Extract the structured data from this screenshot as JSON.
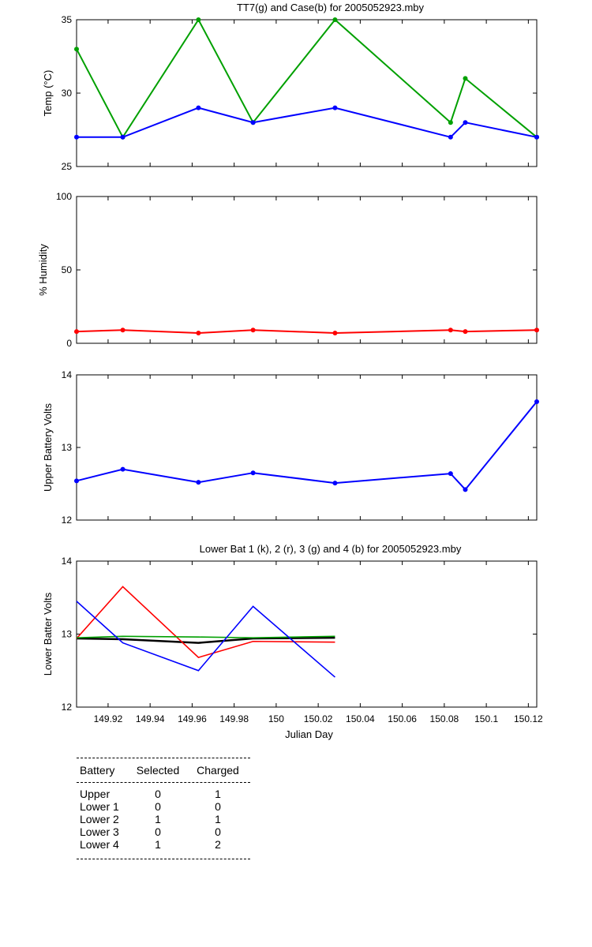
{
  "chart_data": [
    {
      "type": "line",
      "title": "TT7(g) and Case(b) for 2005052923.mby",
      "ylabel": "Temp  (°C)",
      "xlabel": "",
      "ylim": [
        25,
        35
      ],
      "yticks": [
        "25",
        "30",
        "35"
      ],
      "x": [
        149.905,
        149.927,
        149.963,
        149.989,
        150.028,
        150.083,
        150.09,
        150.124
      ],
      "series": [
        {
          "color": "#00a000",
          "values": [
            33,
            27,
            35,
            28,
            35,
            28,
            31,
            27
          ]
        },
        {
          "color": "#0000ff",
          "values": [
            27,
            27,
            29,
            28,
            29,
            27,
            28,
            27
          ]
        }
      ]
    },
    {
      "type": "line",
      "title": "",
      "ylabel": "% Humidity",
      "xlabel": "",
      "ylim": [
        0,
        100
      ],
      "yticks": [
        "0",
        "50",
        "100"
      ],
      "x": [
        149.905,
        149.927,
        149.963,
        149.989,
        150.028,
        150.083,
        150.09,
        150.124
      ],
      "series": [
        {
          "color": "#ff0000",
          "values": [
            8,
            9,
            7,
            9,
            7,
            9,
            8,
            9
          ]
        }
      ]
    },
    {
      "type": "line",
      "title": "",
      "ylabel": "Upper Battery Volts",
      "xlabel": "",
      "ylim": [
        12,
        14
      ],
      "yticks": [
        "12",
        "13",
        "14"
      ],
      "x": [
        149.905,
        149.927,
        149.963,
        149.989,
        150.028,
        150.083,
        150.09,
        150.124
      ],
      "series": [
        {
          "color": "#0000ff",
          "values": [
            12.54,
            12.7,
            12.52,
            12.65,
            12.51,
            12.64,
            12.42,
            13.63
          ]
        }
      ]
    },
    {
      "type": "line",
      "title": "Lower Bat 1 (k), 2 (r), 3 (g) and 4 (b) for 2005052923.mby",
      "ylabel": "Lower Batter Volts",
      "xlabel": "Julian Day",
      "ylim": [
        12,
        14
      ],
      "yticks": [
        "12",
        "13",
        "14"
      ],
      "xticks": [
        "149.92",
        "149.94",
        "149.96",
        "149.98",
        "150",
        "150.02",
        "150.04",
        "150.06",
        "150.08",
        "150.1",
        "150.12"
      ],
      "x": [
        149.905,
        149.927,
        149.963,
        149.989,
        150.028
      ],
      "series": [
        {
          "color": "#000000",
          "values": [
            12.94,
            12.93,
            12.88,
            12.94,
            12.95
          ]
        },
        {
          "color": "#ff0000",
          "values": [
            12.94,
            13.65,
            12.68,
            12.9,
            12.89
          ]
        },
        {
          "color": "#00a000",
          "values": [
            12.95,
            12.97,
            12.96,
            12.95,
            12.97
          ]
        },
        {
          "color": "#0000ff",
          "values": [
            13.45,
            12.88,
            12.5,
            13.38,
            12.41
          ]
        }
      ]
    }
  ],
  "table": {
    "headers": [
      "Battery",
      "Selected",
      "Charged"
    ],
    "rows": [
      [
        "Upper",
        "0",
        "1"
      ],
      [
        "Lower 1",
        "0",
        "0"
      ],
      [
        "Lower 2",
        "1",
        "1"
      ],
      [
        "Lower 3",
        "0",
        "0"
      ],
      [
        "Lower 4",
        "1",
        "2"
      ]
    ]
  }
}
